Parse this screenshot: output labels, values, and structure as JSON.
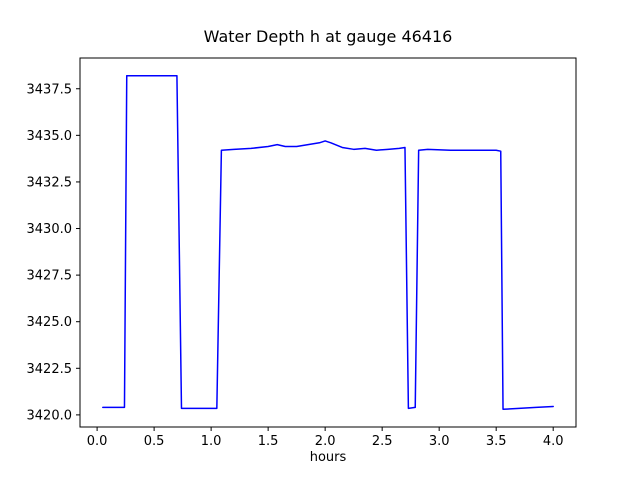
{
  "chart_data": {
    "type": "line",
    "title": "Water Depth h at gauge 46416",
    "xlabel": "hours",
    "ylabel": "",
    "legend": null,
    "grid": false,
    "line_color": "#0000ff",
    "frame_color": "#000000",
    "background_color": "#ffffff",
    "xlim": [
      -0.15,
      4.2
    ],
    "ylim": [
      3419.35,
      3439.15
    ],
    "xticks": [
      0.0,
      0.5,
      1.0,
      1.5,
      2.0,
      2.5,
      3.0,
      3.5,
      4.0
    ],
    "yticks": [
      3420.0,
      3422.5,
      3425.0,
      3427.5,
      3430.0,
      3432.5,
      3435.0,
      3437.5
    ],
    "series": [
      {
        "name": "water-depth-h",
        "x": [
          0.05,
          0.24,
          0.26,
          0.7,
          0.74,
          1.05,
          1.09,
          1.2,
          1.35,
          1.5,
          1.58,
          1.65,
          1.75,
          1.85,
          1.95,
          2.0,
          2.05,
          2.15,
          2.25,
          2.35,
          2.45,
          2.55,
          2.65,
          2.7,
          2.73,
          2.79,
          2.82,
          2.9,
          3.1,
          3.3,
          3.5,
          3.54,
          3.56,
          3.7,
          3.85,
          4.0
        ],
        "y": [
          3420.4,
          3420.4,
          3438.2,
          3438.2,
          3420.35,
          3420.35,
          3434.2,
          3434.25,
          3434.3,
          3434.4,
          3434.5,
          3434.4,
          3434.4,
          3434.5,
          3434.6,
          3434.7,
          3434.6,
          3434.35,
          3434.25,
          3434.3,
          3434.2,
          3434.25,
          3434.3,
          3434.35,
          3420.35,
          3420.4,
          3434.2,
          3434.25,
          3434.2,
          3434.2,
          3434.2,
          3434.15,
          3420.3,
          3420.35,
          3420.4,
          3420.45
        ]
      }
    ]
  }
}
